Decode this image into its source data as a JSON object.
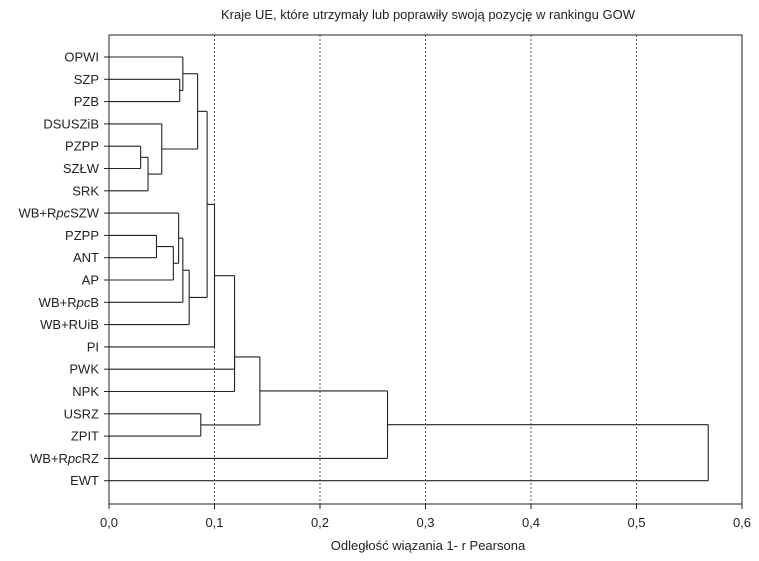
{
  "chart_data": {
    "type": "dendrogram",
    "title": "Kraje UE, które utrzymały lub poprawiły swoją pozycję w rankingu GOW",
    "xlabel": "Odległość wiązania 1- r Pearsona",
    "ylabel": "",
    "xlim": [
      0,
      0.6
    ],
    "xticks": [
      0.0,
      0.1,
      0.2,
      0.3,
      0.4,
      0.5,
      0.6
    ],
    "xtick_labels": [
      "0,0",
      "0,1",
      "0,2",
      "0,3",
      "0,4",
      "0,5",
      "0,6"
    ],
    "grid": "vertical dotted lines at 0,1 to 0,5",
    "leaves": [
      {
        "pre": "OPWI"
      },
      {
        "pre": "SZP"
      },
      {
        "pre": "PZB"
      },
      {
        "pre": "DSUSZiB"
      },
      {
        "pre": "PZPP"
      },
      {
        "pre": "SZŁW"
      },
      {
        "pre": "SRK"
      },
      {
        "pre": "WB+R",
        "it": "pc",
        "post": "SZW"
      },
      {
        "pre": "PZPP"
      },
      {
        "pre": "ANT"
      },
      {
        "pre": "AP"
      },
      {
        "pre": "WB+R",
        "it": "pc",
        "post": "B"
      },
      {
        "pre": "WB+RUiB"
      },
      {
        "pre": "PI"
      },
      {
        "pre": "PWK"
      },
      {
        "pre": "NPK"
      },
      {
        "pre": "USRZ"
      },
      {
        "pre": "ZPIT"
      },
      {
        "pre": "WB+R",
        "it": "pc",
        "post": "RZ"
      },
      {
        "pre": "EWT"
      }
    ],
    "merges": [
      {
        "a": "L1",
        "b": "L2",
        "height": 0.067
      },
      {
        "a": "L0",
        "b": "M0",
        "height": 0.07
      },
      {
        "a": "L4",
        "b": "L5",
        "height": 0.03
      },
      {
        "a": "M2",
        "b": "L6",
        "height": 0.037
      },
      {
        "a": "L3",
        "b": "M3",
        "height": 0.05
      },
      {
        "a": "M1",
        "b": "M4",
        "height": 0.084
      },
      {
        "a": "L8",
        "b": "L9",
        "height": 0.045
      },
      {
        "a": "M6",
        "b": "L10",
        "height": 0.061
      },
      {
        "a": "L7",
        "b": "M7",
        "height": 0.066
      },
      {
        "a": "M8",
        "b": "L11",
        "height": 0.07
      },
      {
        "a": "M9",
        "b": "L12",
        "height": 0.076
      },
      {
        "a": "M5",
        "b": "M10",
        "height": 0.093
      },
      {
        "a": "M11",
        "b": "L13",
        "height": 0.1
      },
      {
        "a": "M12",
        "b": "L14",
        "height": 0.119
      },
      {
        "a": "M13",
        "b": "L15",
        "height": 0.119
      },
      {
        "a": "L16",
        "b": "L17",
        "height": 0.087
      },
      {
        "a": "M14",
        "b": "M15",
        "height": 0.143
      },
      {
        "a": "M16",
        "b": "L18",
        "height": 0.264
      },
      {
        "a": "M17",
        "b": "L19",
        "height": 0.568
      }
    ]
  }
}
